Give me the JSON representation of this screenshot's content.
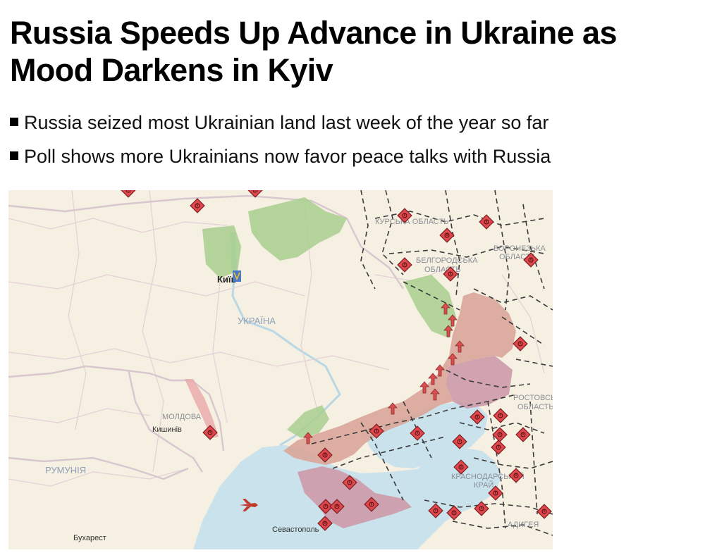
{
  "article": {
    "headline": "Russia Speeds Up Advance in Ukraine as Mood Darkens in Kyiv",
    "bullets": [
      "Russia seized most Ukrainian land last week of the year so far",
      "Poll shows more Ukrainians now favor peace talks with Russia"
    ]
  },
  "map": {
    "labels": {
      "ukraine": "УКРАЇНА",
      "kyiv": "Київ",
      "kursk": "КУРСЬКА ОБЛАСТЬ",
      "belgorod_1": "БЕЛГОРОДСЬКА",
      "belgorod_2": "ОБЛАСТЬ",
      "voronezh_1": "ВОРОНЕЗЬКА",
      "voronezh_2": "ОБЛАСТЬ",
      "rostov_1": "РОСТОВСЬКА",
      "rostov_2": "ОБЛАСТЬ",
      "moldova": "МОЛДОВА",
      "chisinau": "Кишинів",
      "romania": "РУМУНІЯ",
      "krasnodar_1": "КРАСНОДАРСЬКИЙ",
      "krasnodar_2": "КРАЙ",
      "adygea": "АДИГЕЯ",
      "sevastopol": "Севастополь",
      "bucharest": "Бухарест"
    },
    "colors": {
      "land": "#f6f0e3",
      "sea": "#c9e2ec",
      "occupied": "#d9a79a",
      "occupied_pre2022": "#cd9aa8",
      "liberated": "#a8cf8e",
      "marker": "#e0474c",
      "front_arrow": "#d94f4f",
      "border": "#d8c7ce"
    },
    "icons": [
      "attack-marker-icon",
      "advance-arrow-icon",
      "aircraft-icon",
      "kyiv-emblem-icon"
    ]
  }
}
